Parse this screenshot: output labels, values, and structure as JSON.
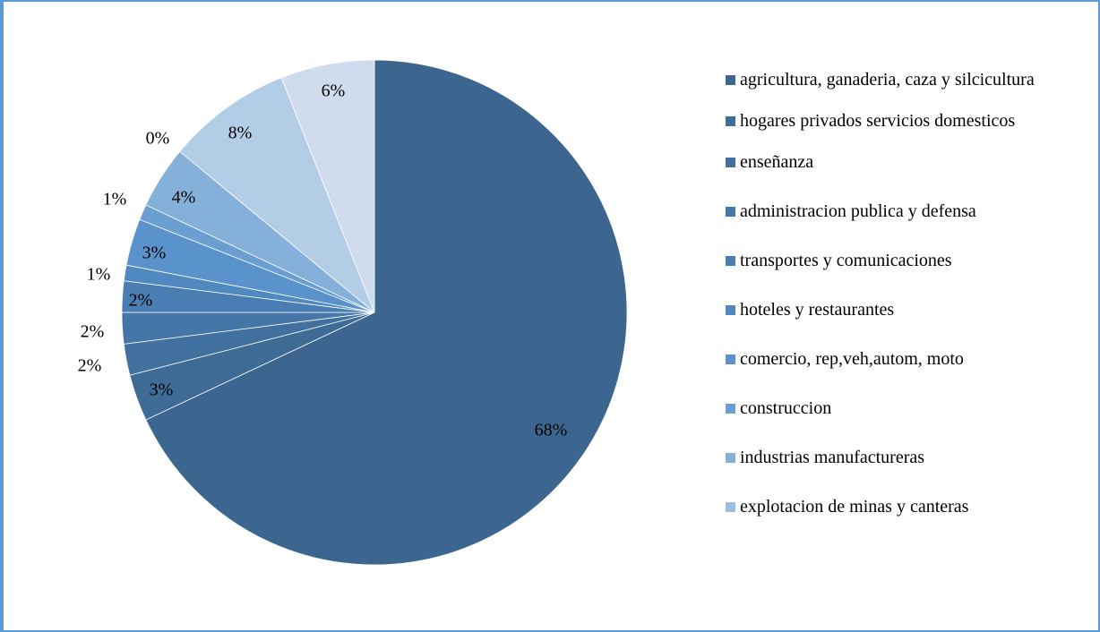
{
  "chart_data": {
    "type": "pie",
    "categories": [
      "agricultura, ganaderia, caza y silcicultura",
      "hogares privados servicios domesticos",
      "enseñanza",
      "administracion publica y defensa",
      "transportes y comunicaciones",
      "hoteles y restaurantes",
      "comercio, rep,veh,autom, moto",
      "construccion",
      "industrias manufactureras",
      "explotacion de minas y canteras",
      null,
      null
    ],
    "values": [
      68,
      3,
      2,
      2,
      2,
      1,
      3,
      1,
      4,
      0,
      8,
      6
    ],
    "value_labels": [
      "68%",
      "3%",
      "2%",
      "2%",
      "2%",
      "1%",
      "3%",
      "1%",
      "4%",
      "0%",
      "8%",
      "6%"
    ],
    "colors": [
      "#3c668f",
      "#3f6b97",
      "#42709f",
      "#4576a8",
      "#4a7eb3",
      "#5088c0",
      "#5a93cc",
      "#6b9fd2",
      "#84b0da",
      "#9bbfe2",
      "#b3cde7",
      "#d0dcee"
    ]
  }
}
